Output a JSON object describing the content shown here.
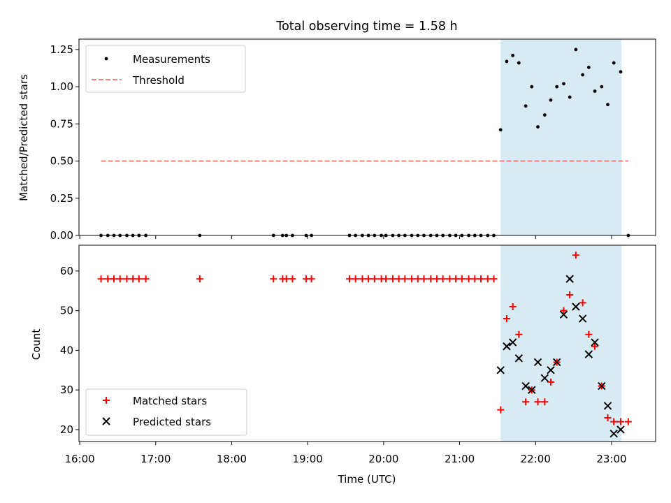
{
  "chart_data": {
    "title": "Total observing time = 1.58 h",
    "x_tick_labels": [
      "16:00",
      "17:00",
      "18:00",
      "19:00",
      "20:00",
      "21:00",
      "22:00",
      "23:00"
    ],
    "x_tick_hours": [
      16,
      17,
      18,
      19,
      20,
      21,
      22,
      23
    ],
    "xlim_hours": [
      15.99,
      23.58
    ],
    "xlabel": "Time (UTC)",
    "highlight_span_hours": [
      21.54,
      23.13
    ],
    "colors": {
      "span": "#add8e6",
      "measure": "#000000",
      "threshold": "#ff8080",
      "matched": "#ff0000",
      "predicted": "#000000"
    },
    "panels": [
      {
        "type": "scatter",
        "ylabel": "Matched/Predicted stars",
        "ylim": [
          0,
          1.32
        ],
        "y_ticks": [
          0,
          0.25,
          0.5,
          0.75,
          1.0,
          1.25
        ],
        "y_tick_labels": [
          "0.00",
          "0.25",
          "0.50",
          "0.75",
          "1.00",
          "1.25"
        ],
        "legend_position": "upper-left",
        "series": [
          {
            "name": "Measurements",
            "kind": "dot",
            "x": [
              16.28,
              16.37,
              16.45,
              16.53,
              16.62,
              16.7,
              16.78,
              16.87,
              17.58,
              18.55,
              18.67,
              18.72,
              18.8,
              18.98,
              19.05,
              19.55,
              19.63,
              19.72,
              19.8,
              19.88,
              19.97,
              20.03,
              20.12,
              20.2,
              20.28,
              20.37,
              20.45,
              20.53,
              20.62,
              20.7,
              20.78,
              20.87,
              20.95,
              21.03,
              21.12,
              21.2,
              21.28,
              21.37,
              21.45,
              21.54,
              21.62,
              21.7,
              21.78,
              21.87,
              21.95,
              22.03,
              22.12,
              22.2,
              22.28,
              22.37,
              22.45,
              22.53,
              22.62,
              22.7,
              22.78,
              22.87,
              22.95,
              23.03,
              23.12,
              23.22
            ],
            "y": [
              0,
              0,
              0,
              0,
              0,
              0,
              0,
              0,
              0,
              0,
              0,
              0,
              0,
              0,
              0,
              0,
              0,
              0,
              0,
              0,
              0,
              0,
              0,
              0,
              0,
              0,
              0,
              0,
              0,
              0,
              0,
              0,
              0,
              0,
              0,
              0,
              0,
              0,
              0,
              0.71,
              1.17,
              1.21,
              1.16,
              0.87,
              1.0,
              0.73,
              0.81,
              0.91,
              1.0,
              1.02,
              0.93,
              1.25,
              1.08,
              1.13,
              0.97,
              1.0,
              0.88,
              1.16,
              1.1,
              0.0
            ]
          },
          {
            "name": "Threshold",
            "kind": "dashed-line",
            "x": [
              16.28,
              23.22
            ],
            "y": [
              0.5,
              0.5
            ]
          }
        ]
      },
      {
        "type": "scatter",
        "ylabel": "Count",
        "ylim": [
          17,
          66.5
        ],
        "y_ticks": [
          20,
          30,
          40,
          50,
          60
        ],
        "y_tick_labels": [
          "20",
          "30",
          "40",
          "50",
          "60"
        ],
        "legend_position": "lower-left",
        "series": [
          {
            "name": "Matched stars",
            "kind": "plus",
            "x": [
              16.28,
              16.37,
              16.45,
              16.53,
              16.62,
              16.7,
              16.78,
              16.87,
              17.58,
              18.55,
              18.67,
              18.72,
              18.8,
              18.98,
              19.05,
              19.55,
              19.63,
              19.72,
              19.8,
              19.88,
              19.97,
              20.03,
              20.12,
              20.2,
              20.28,
              20.37,
              20.45,
              20.53,
              20.62,
              20.7,
              20.78,
              20.87,
              20.95,
              21.03,
              21.12,
              21.2,
              21.28,
              21.37,
              21.45,
              21.54,
              21.62,
              21.7,
              21.78,
              21.87,
              21.95,
              22.03,
              22.12,
              22.2,
              22.28,
              22.37,
              22.45,
              22.53,
              22.62,
              22.7,
              22.78,
              22.87,
              22.95,
              23.03,
              23.12,
              23.22
            ],
            "y": [
              58,
              58,
              58,
              58,
              58,
              58,
              58,
              58,
              58,
              58,
              58,
              58,
              58,
              58,
              58,
              58,
              58,
              58,
              58,
              58,
              58,
              58,
              58,
              58,
              58,
              58,
              58,
              58,
              58,
              58,
              58,
              58,
              58,
              58,
              58,
              58,
              58,
              58,
              58,
              25,
              48,
              51,
              44,
              27,
              30,
              27,
              27,
              32,
              37,
              50,
              54,
              64,
              52,
              44,
              41,
              31,
              23,
              22,
              22,
              22
            ]
          },
          {
            "name": "Predicted stars",
            "kind": "x",
            "x": [
              21.54,
              21.62,
              21.7,
              21.78,
              21.87,
              21.95,
              22.03,
              22.12,
              22.2,
              22.28,
              22.37,
              22.45,
              22.53,
              22.62,
              22.7,
              22.78,
              22.87,
              22.95,
              23.03,
              23.12
            ],
            "y": [
              35,
              41,
              42,
              38,
              31,
              30,
              37,
              33,
              35,
              37,
              49,
              58,
              51,
              48,
              39,
              42,
              31,
              26,
              19,
              20
            ]
          }
        ]
      }
    ]
  }
}
